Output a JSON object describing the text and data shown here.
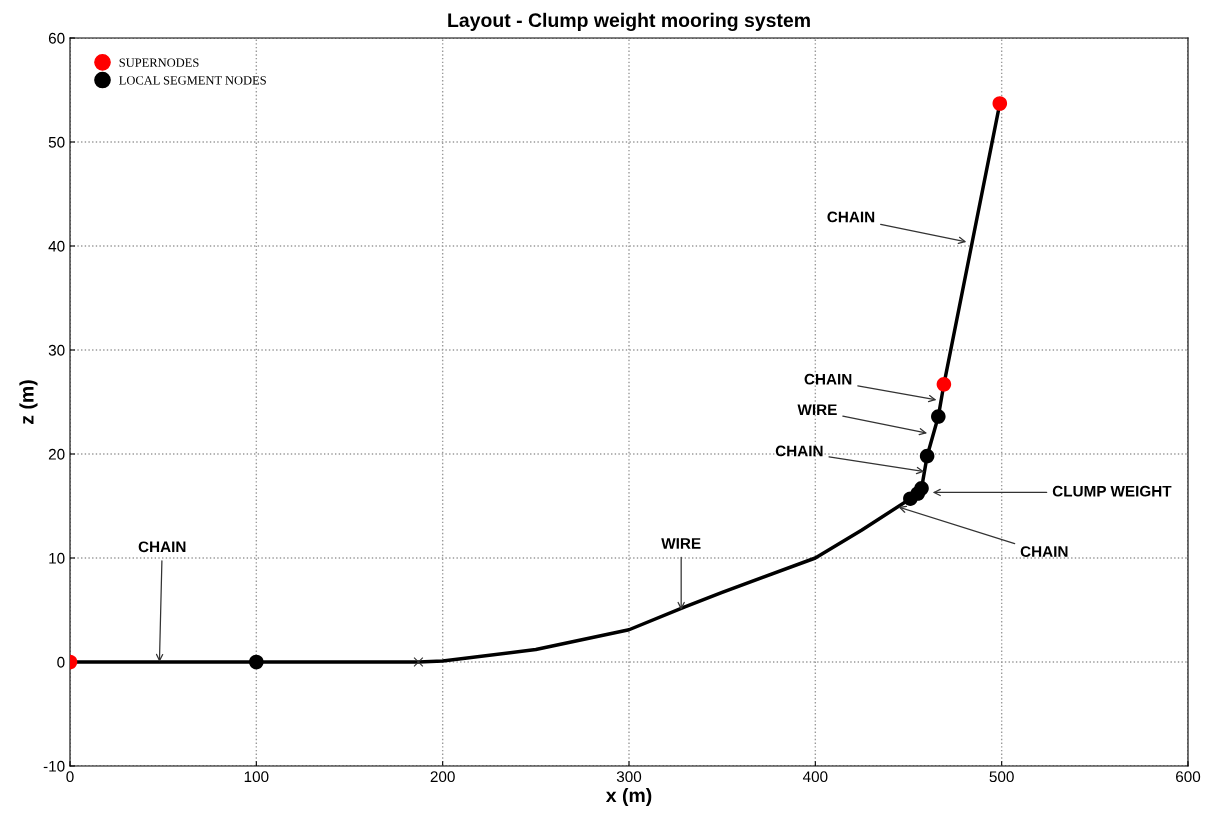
{
  "chart_data": {
    "type": "line",
    "title": "Layout - Clump weight mooring system",
    "xlabel": "x (m)",
    "ylabel": "z (m)",
    "xlim": [
      0,
      600
    ],
    "ylim": [
      -10,
      60
    ],
    "xticks": [
      0,
      100,
      200,
      300,
      400,
      500,
      600
    ],
    "yticks": [
      -10,
      0,
      10,
      20,
      30,
      40,
      50,
      60
    ],
    "grid": true,
    "legend": "top left",
    "series": [
      {
        "color": "#000000",
        "marker": "none",
        "line_style": "solid",
        "x": [
          0,
          100,
          187,
          200,
          250,
          300,
          330,
          350,
          400,
          425,
          451,
          455,
          457,
          460,
          466,
          469,
          499
        ],
        "values": [
          0,
          0,
          0,
          0.1,
          1.2,
          3.1,
          5.3,
          6.7,
          10,
          12.7,
          15.7,
          16.2,
          16.7,
          19.8,
          23.6,
          26.7,
          53.7
        ]
      },
      {
        "type": "scatter",
        "color": "#333333",
        "marker": "cross",
        "x": [
          187
        ],
        "values": [
          0
        ]
      },
      {
        "type": "scatter",
        "name": "SUPERNODES",
        "color": "#ff0000",
        "marker": "circle",
        "x": [
          0,
          469,
          499
        ],
        "values": [
          0,
          26.7,
          53.7
        ]
      },
      {
        "type": "scatter",
        "name": "LOCAL SEGMENT NODES",
        "color": "#000000",
        "marker": "circle",
        "x": [
          100,
          451,
          455,
          457,
          460,
          466
        ],
        "values": [
          0,
          15.7,
          16.2,
          16.7,
          19.8,
          23.6
        ]
      }
    ],
    "annotations": [
      {
        "text": "CHAIN",
        "x": 48,
        "y": 0
      },
      {
        "text": "WIRE",
        "x": 328,
        "y": 5
      },
      {
        "text": "CHAIN",
        "x": 481,
        "y": 40.4
      },
      {
        "text": "CHAIN",
        "x": 465,
        "y": 25.2
      },
      {
        "text": "WIRE",
        "x": 460,
        "y": 22
      },
      {
        "text": "CHAIN",
        "x": 458.5,
        "y": 18.3
      },
      {
        "text": "CLUMP WEIGHT",
        "x": 463,
        "y": 16.3
      },
      {
        "text": "CHAIN",
        "x": 444.6,
        "y": 14.9
      }
    ]
  }
}
